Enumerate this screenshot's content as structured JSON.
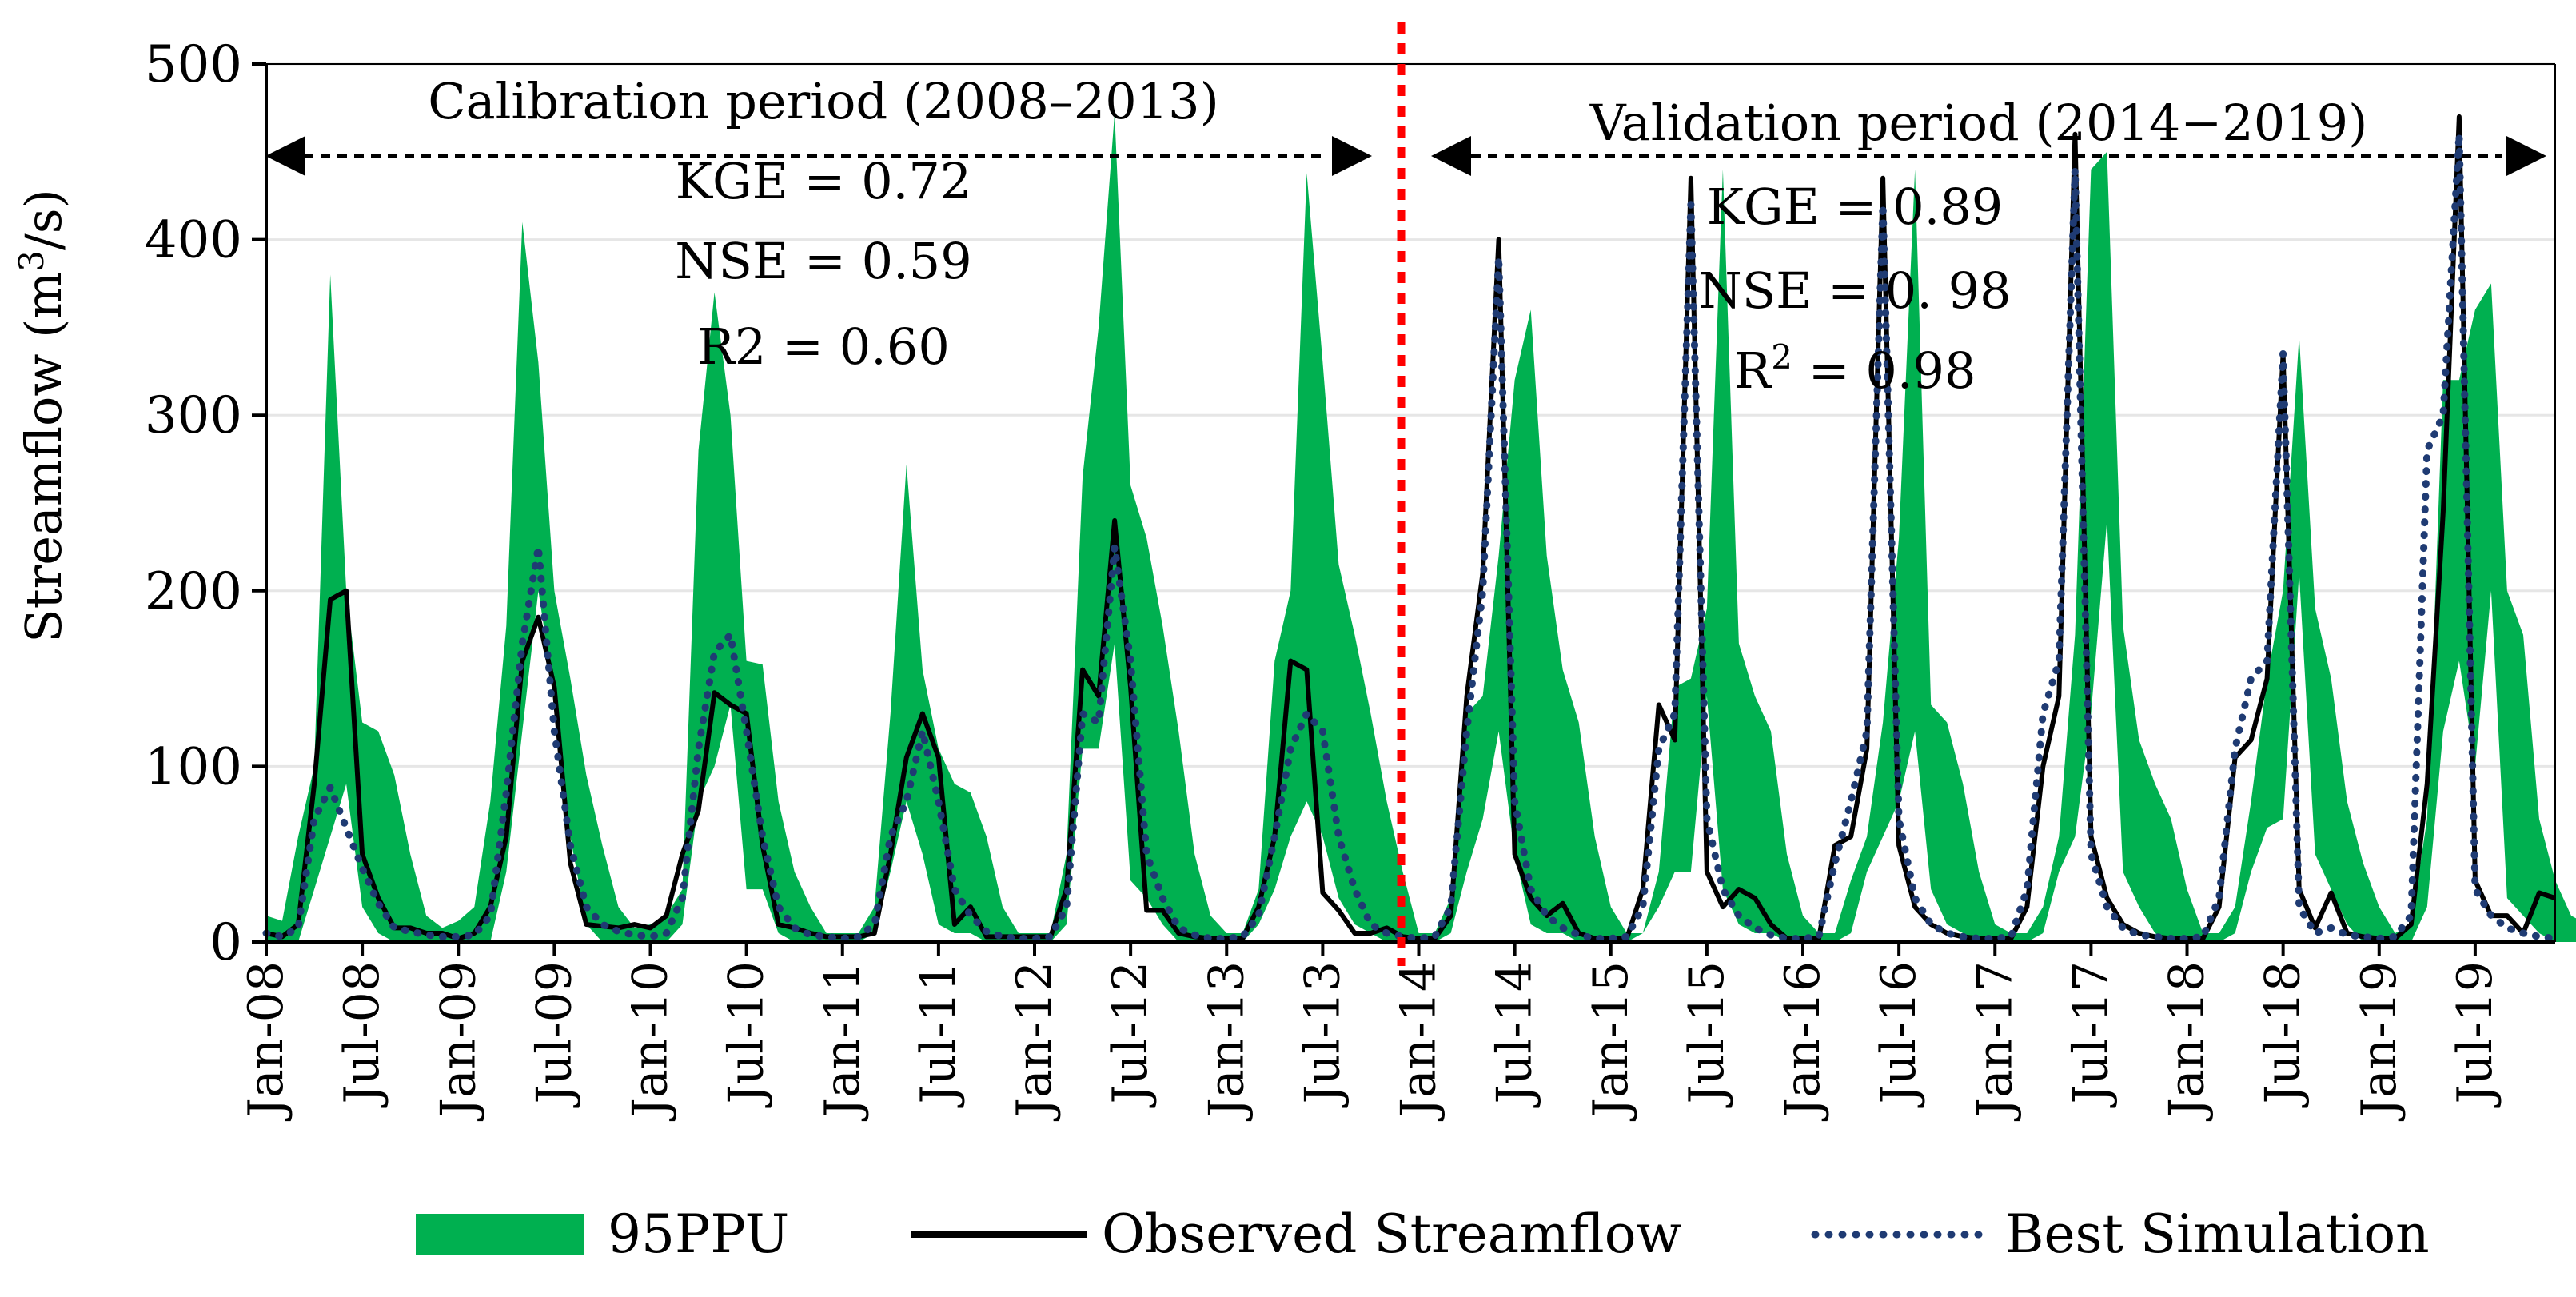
{
  "chart_data": {
    "type": "line",
    "ylabel_main": "Streamflow (m",
    "ylabel_sup": "3",
    "ylabel_tail": "/s)",
    "ylim": [
      0,
      500
    ],
    "yticks": [
      0,
      100,
      200,
      300,
      400,
      500
    ],
    "x_start": "Jan-08",
    "n_months": 144,
    "xtick_labels": [
      "Jan-08",
      "Jul-08",
      "Jan-09",
      "Jul-09",
      "Jan-10",
      "Jul-10",
      "Jan-11",
      "Jul-11",
      "Jan-12",
      "Jul-12",
      "Jan-13",
      "Jul-13",
      "Jan-14",
      "Jul-14",
      "Jan-15",
      "Jul-15",
      "Jan-16",
      "Jul-16",
      "Jan-17",
      "Jul-17",
      "Jan-18",
      "Jul-18",
      "Jan-19",
      "Jul-19"
    ],
    "divider_month": 72,
    "colors": {
      "band": "#00b050",
      "observed": "#000000",
      "simulation": "#1f3b73",
      "divider": "#ff0000"
    },
    "periods": {
      "calibration": {
        "label": "Calibration period (2008–2013)",
        "kge": "KGE = 0.72",
        "nse": "NSE = 0.59",
        "r2": "R2 = 0.60"
      },
      "validation": {
        "label": "Validation period (2014−2019)",
        "kge": "KGE = 0.89",
        "nse": "NSE = 0. 98",
        "r2_main": "R",
        "r2_sup": "2",
        "r2_tail": " = 0.98"
      }
    },
    "series": [
      {
        "name": "95PPU",
        "kind": "band",
        "upper": [
          15,
          12,
          60,
          100,
          380,
          200,
          125,
          120,
          95,
          50,
          15,
          8,
          12,
          20,
          80,
          180,
          410,
          330,
          200,
          150,
          95,
          55,
          20,
          8,
          10,
          15,
          30,
          280,
          370,
          300,
          160,
          158,
          80,
          40,
          20,
          5,
          5,
          5,
          20,
          130,
          272,
          155,
          110,
          90,
          85,
          60,
          20,
          5,
          5,
          5,
          50,
          265,
          350,
          472,
          260,
          230,
          180,
          120,
          50,
          15,
          5,
          5,
          30,
          160,
          200,
          438,
          330,
          215,
          175,
          130,
          80,
          40,
          5,
          5,
          25,
          130,
          140,
          220,
          320,
          360,
          220,
          155,
          125,
          60,
          20,
          5,
          5,
          40,
          145,
          150,
          190,
          440,
          170,
          140,
          120,
          50,
          15,
          5,
          5,
          35,
          60,
          125,
          230,
          440,
          135,
          125,
          90,
          40,
          10,
          5,
          5,
          20,
          60,
          175,
          440,
          450,
          180,
          115,
          90,
          70,
          30,
          5,
          5,
          20,
          80,
          150,
          200,
          345,
          190,
          150,
          80,
          45,
          20,
          5,
          10,
          70,
          320,
          320,
          360,
          375,
          200,
          175,
          70,
          35,
          15,
          10
        ],
        "lower": [
          0,
          0,
          0,
          30,
          60,
          90,
          20,
          5,
          0,
          0,
          0,
          0,
          0,
          0,
          0,
          40,
          120,
          200,
          140,
          60,
          10,
          0,
          0,
          0,
          0,
          0,
          10,
          80,
          100,
          135,
          30,
          30,
          5,
          0,
          0,
          0,
          0,
          0,
          5,
          40,
          80,
          50,
          10,
          5,
          5,
          0,
          0,
          0,
          0,
          0,
          10,
          110,
          110,
          170,
          35,
          25,
          10,
          0,
          0,
          0,
          0,
          0,
          10,
          30,
          60,
          80,
          60,
          25,
          10,
          5,
          0,
          0,
          0,
          0,
          5,
          40,
          70,
          120,
          50,
          10,
          5,
          5,
          0,
          0,
          0,
          0,
          5,
          20,
          40,
          40,
          140,
          30,
          10,
          5,
          5,
          0,
          0,
          0,
          0,
          5,
          40,
          60,
          80,
          120,
          30,
          10,
          5,
          0,
          0,
          0,
          0,
          5,
          40,
          60,
          130,
          240,
          40,
          20,
          5,
          0,
          0,
          0,
          0,
          5,
          40,
          65,
          70,
          210,
          50,
          30,
          10,
          0,
          0,
          0,
          0,
          20,
          120,
          160,
          100,
          200,
          25,
          15,
          5,
          0,
          0,
          0
        ]
      },
      {
        "name": "Observed Streamflow",
        "kind": "line",
        "values": [
          5,
          3,
          10,
          90,
          195,
          200,
          50,
          25,
          8,
          8,
          5,
          5,
          2,
          5,
          20,
          60,
          160,
          185,
          145,
          45,
          10,
          9,
          8,
          10,
          8,
          15,
          50,
          75,
          142,
          135,
          130,
          55,
          10,
          8,
          5,
          3,
          3,
          3,
          5,
          50,
          105,
          130,
          105,
          10,
          20,
          3,
          3,
          3,
          3,
          3,
          30,
          155,
          140,
          240,
          145,
          18,
          18,
          5,
          3,
          2,
          2,
          2,
          20,
          60,
          160,
          155,
          28,
          18,
          5,
          5,
          8,
          3,
          2,
          2,
          15,
          140,
          210,
          400,
          50,
          25,
          15,
          22,
          5,
          2,
          2,
          2,
          30,
          135,
          115,
          435,
          40,
          20,
          30,
          25,
          10,
          2,
          2,
          2,
          55,
          60,
          110,
          435,
          55,
          20,
          10,
          5,
          3,
          2,
          2,
          2,
          20,
          100,
          140,
          460,
          60,
          25,
          10,
          5,
          3,
          2,
          2,
          2,
          20,
          105,
          115,
          150,
          335,
          30,
          8,
          28,
          5,
          3,
          2,
          2,
          10,
          90,
          245,
          470,
          35,
          15,
          15,
          5,
          28,
          25
        ]
      },
      {
        "name": "Best Simulation",
        "kind": "dotted",
        "values": [
          5,
          3,
          8,
          70,
          88,
          65,
          42,
          22,
          8,
          6,
          4,
          3,
          3,
          4,
          15,
          85,
          170,
          225,
          120,
          55,
          20,
          10,
          6,
          4,
          3,
          5,
          25,
          110,
          165,
          175,
          120,
          60,
          20,
          8,
          4,
          3,
          2,
          3,
          10,
          60,
          80,
          120,
          80,
          30,
          15,
          6,
          3,
          2,
          2,
          3,
          20,
          130,
          125,
          225,
          160,
          50,
          25,
          8,
          4,
          2,
          2,
          3,
          15,
          60,
          110,
          130,
          120,
          60,
          30,
          10,
          5,
          3,
          2,
          3,
          20,
          120,
          200,
          390,
          80,
          30,
          15,
          8,
          4,
          2,
          2,
          3,
          20,
          110,
          130,
          420,
          70,
          30,
          15,
          8,
          4,
          2,
          2,
          3,
          45,
          80,
          120,
          420,
          70,
          25,
          10,
          5,
          3,
          2,
          2,
          3,
          30,
          130,
          160,
          440,
          50,
          20,
          8,
          4,
          3,
          2,
          2,
          3,
          25,
          110,
          150,
          160,
          335,
          20,
          5,
          8,
          4,
          3,
          2,
          3,
          15,
          280,
          300,
          460,
          30,
          15,
          8,
          5,
          3,
          2
        ]
      }
    ],
    "legend": {
      "items": [
        "95PPU",
        "Observed Streamflow",
        "Best Simulation"
      ],
      "position": "bottom"
    }
  }
}
